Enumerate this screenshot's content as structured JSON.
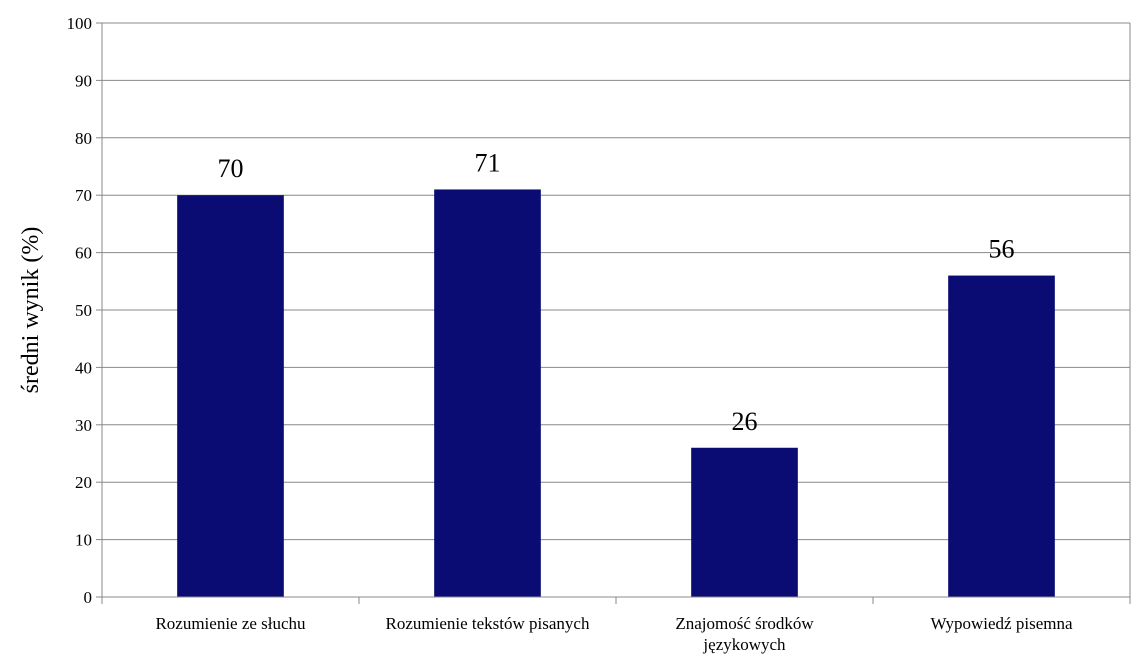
{
  "colors": {
    "bar": "#0b0b74",
    "grid": "#888888",
    "axis": "#888888"
  },
  "chart_data": {
    "type": "bar",
    "title": "",
    "xlabel": "",
    "ylabel": "średni wynik (%)",
    "ylim": [
      0,
      100
    ],
    "ytick_step": 10,
    "grid": true,
    "legend": "none",
    "data_labels": true,
    "categories": [
      [
        "Rozumienie ze słuchu"
      ],
      [
        "Rozumienie tekstów pisanych"
      ],
      [
        "Znajomość środków",
        "językowych"
      ],
      [
        "Wypowiedź pisemna"
      ]
    ],
    "values": [
      70,
      71,
      26,
      56
    ]
  }
}
